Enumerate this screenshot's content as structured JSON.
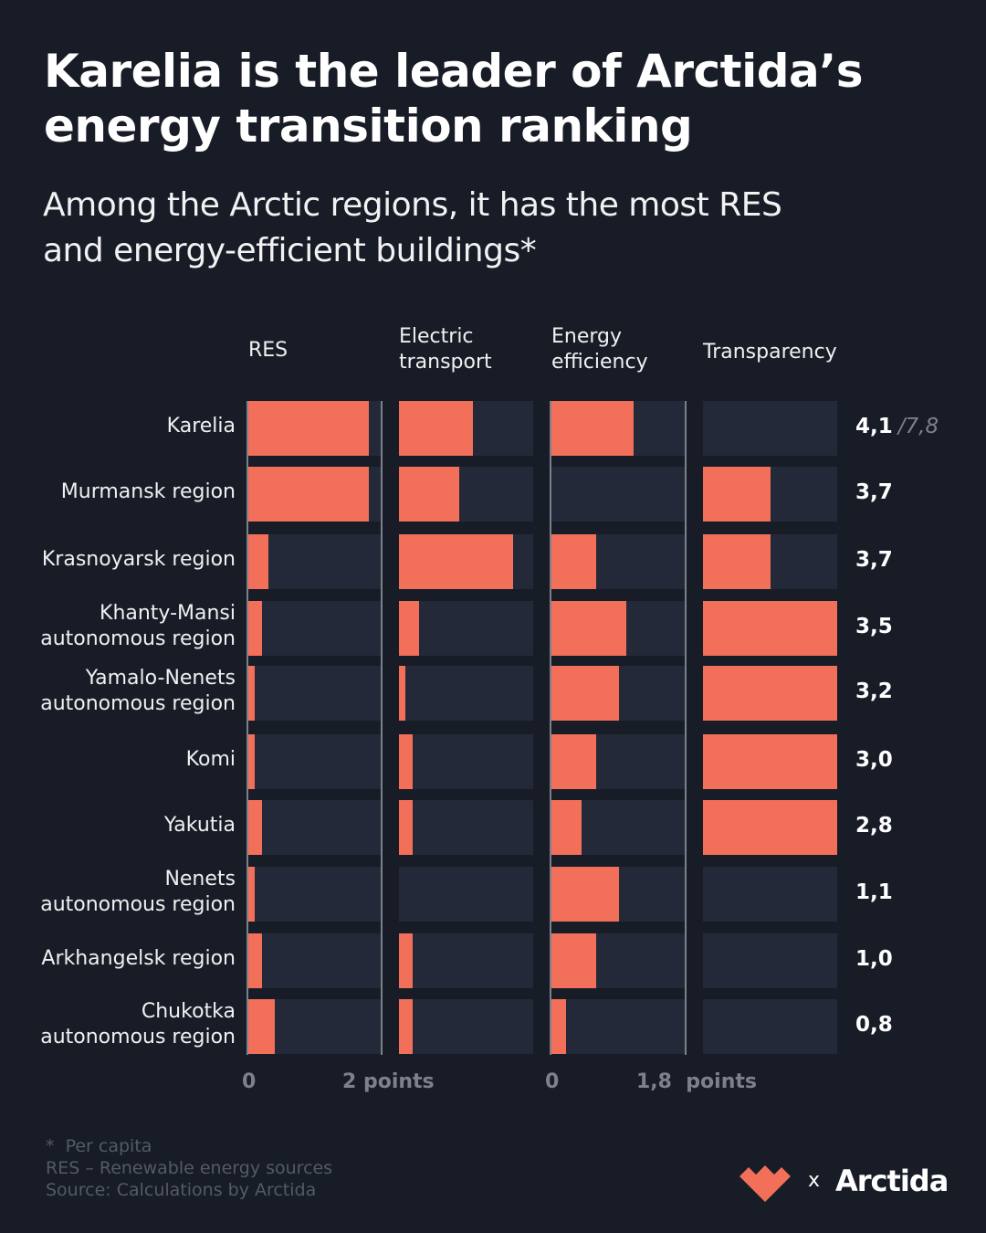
{
  "title": "Karelia is the leader of Arctida’s energy transition ranking",
  "subtitle": "Among the Arctic regions, it has the most RES and energy-efficient buildings*",
  "colors": {
    "background": "#171c27",
    "track": "#232938",
    "bar": "#f27059",
    "reference_line": "#7b808a",
    "muted_text": "#7d818b"
  },
  "chart_data": {
    "type": "bar",
    "title": "Karelia is the leader of Arctida’s energy transition ranking",
    "subtitle": "Among the Arctic regions, it has the most RES and energy-efficient buildings*",
    "categories": [
      "Karelia",
      "Murmansk region",
      "Krasnoyarsk region",
      "Khanty-Mansi autonomous region",
      "Yamalo-Nenets autonomous region",
      "Komi",
      "Yakutia",
      "Nenets autonomous region",
      "Arkhangelsk region",
      "Chukotka autonomous region"
    ],
    "category_lines": [
      [
        "Karelia"
      ],
      [
        "Murmansk region"
      ],
      [
        "Krasnoyarsk region"
      ],
      [
        "Khanty-Mansi",
        "autonomous region"
      ],
      [
        "Yamalo-Nenets",
        "autonomous region"
      ],
      [
        "Komi"
      ],
      [
        "Yakutia"
      ],
      [
        "Nenets",
        "autonomous region"
      ],
      [
        "Arkhangelsk region"
      ],
      [
        "Chukotka",
        "autonomous region"
      ]
    ],
    "series": [
      {
        "name": "RES",
        "header_lines": [
          "RES"
        ],
        "max": 2,
        "values": [
          1.8,
          1.8,
          0.3,
          0.2,
          0.1,
          0.1,
          0.2,
          0.1,
          0.2,
          0.4
        ]
      },
      {
        "name": "Electric transport",
        "header_lines": [
          "Electric",
          "transport"
        ],
        "max": 2,
        "values": [
          1.1,
          0.9,
          1.7,
          0.3,
          0.1,
          0.2,
          0.2,
          0.0,
          0.2,
          0.2
        ]
      },
      {
        "name": "Energy efficiency",
        "header_lines": [
          "Energy",
          "efficiency"
        ],
        "max": 1.8,
        "values": [
          1.1,
          0.0,
          0.6,
          1.0,
          0.9,
          0.6,
          0.4,
          0.9,
          0.6,
          0.2
        ]
      },
      {
        "name": "Transparency",
        "header_lines": [
          "Transparency"
        ],
        "max": 2,
        "values": [
          0.0,
          1.0,
          1.0,
          2.0,
          2.0,
          2.0,
          2.0,
          0.0,
          0.0,
          0.0
        ]
      }
    ],
    "totals": [
      "4,1",
      "3,7",
      "3,7",
      "3,5",
      "3,2",
      "3,0",
      "2,8",
      "1,1",
      "1,0",
      "0,8"
    ],
    "total_max": "/7,8",
    "axis_labels": {
      "res_zero": "0",
      "res_max": "2 points",
      "ee_zero": "0",
      "ee_max": "1,8  points"
    },
    "grid": false,
    "legend": "none"
  },
  "footnotes": [
    "*  Per capita",
    "RES – Renewable energy sources",
    "Source: Calculations by Arctida"
  ],
  "logos": {
    "partner_icon": "heart-crown-icon",
    "separator": "x",
    "brand": "Arctida"
  }
}
